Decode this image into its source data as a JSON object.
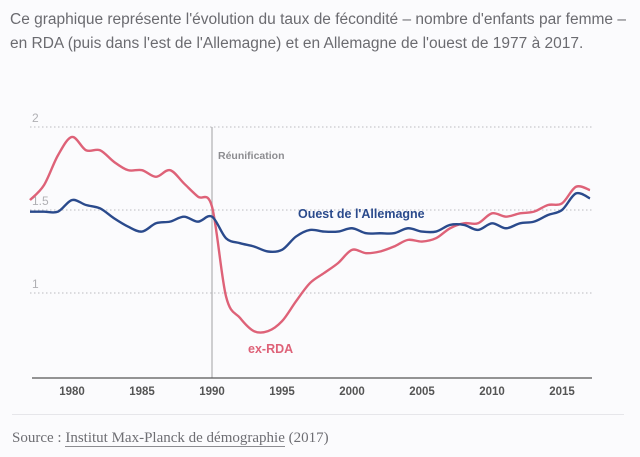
{
  "intro_text": "Ce graphique représente l'évolution du taux de fécondité – nombre d'enfants par femme – en RDA (puis dans l'est de l'Allemagne) et en Allemagne de l'ouest de 1977 à 2017.",
  "source": {
    "prefix": "Source : ",
    "link_label": "Institut Max-Planck de démographie",
    "suffix": " (2017)"
  },
  "colors": {
    "rda": "#de6278",
    "west": "#2a4a8c",
    "grid": "#c8c8cc",
    "axis": "#555555",
    "annotation_line": "#b5b5b8"
  },
  "chart_data": {
    "type": "line",
    "title": "",
    "xlabel": "",
    "ylabel": "",
    "x": [
      1977,
      1978,
      1979,
      1980,
      1981,
      1982,
      1983,
      1984,
      1985,
      1986,
      1987,
      1988,
      1989,
      1990,
      1991,
      1992,
      1993,
      1994,
      1995,
      1996,
      1997,
      1998,
      1999,
      2000,
      2001,
      2002,
      2003,
      2004,
      2005,
      2006,
      2007,
      2008,
      2009,
      2010,
      2011,
      2012,
      2013,
      2014,
      2015,
      2016,
      2017
    ],
    "xlim": [
      1977,
      2017
    ],
    "ylim": [
      0.5,
      2
    ],
    "x_ticks": [
      "1980",
      "1985",
      "1990",
      "1995",
      "2000",
      "2005",
      "2010",
      "2015"
    ],
    "y_ticks": [
      "1",
      "1.5",
      "2"
    ],
    "grid": "horizontal dotted",
    "series": [
      {
        "name": "ex-RDA",
        "values": [
          1.56,
          1.65,
          1.83,
          1.94,
          1.86,
          1.86,
          1.79,
          1.74,
          1.74,
          1.7,
          1.74,
          1.66,
          1.58,
          1.52,
          0.98,
          0.85,
          0.77,
          0.77,
          0.83,
          0.95,
          1.06,
          1.12,
          1.18,
          1.26,
          1.24,
          1.25,
          1.28,
          1.32,
          1.31,
          1.33,
          1.39,
          1.42,
          1.42,
          1.48,
          1.46,
          1.48,
          1.49,
          1.53,
          1.54,
          1.64,
          1.62
        ]
      },
      {
        "name": "Ouest de l'Allemagne",
        "values": [
          1.49,
          1.49,
          1.49,
          1.56,
          1.53,
          1.51,
          1.45,
          1.4,
          1.37,
          1.42,
          1.43,
          1.46,
          1.43,
          1.46,
          1.33,
          1.3,
          1.28,
          1.25,
          1.26,
          1.34,
          1.38,
          1.37,
          1.37,
          1.39,
          1.36,
          1.36,
          1.36,
          1.39,
          1.37,
          1.37,
          1.41,
          1.41,
          1.38,
          1.42,
          1.39,
          1.42,
          1.43,
          1.47,
          1.5,
          1.6,
          1.57
        ]
      }
    ],
    "annotations": [
      {
        "label": "Réunification",
        "x": 1990,
        "type": "vertical-line"
      }
    ],
    "legend": "inline labels"
  }
}
